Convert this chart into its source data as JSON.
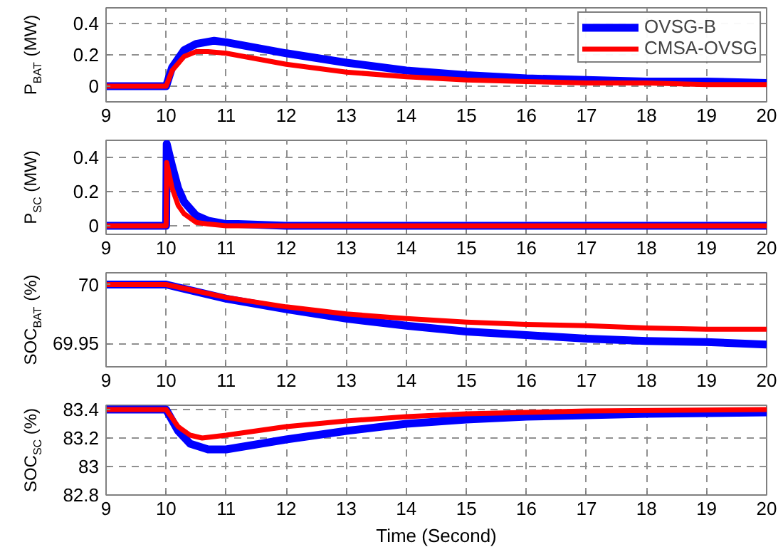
{
  "chart_data": [
    {
      "type": "line",
      "ylabel": "P$_{BAT}$ (MW)",
      "xlim": [
        9,
        20
      ],
      "xticks": [
        9,
        10,
        11,
        12,
        13,
        14,
        15,
        16,
        17,
        18,
        19,
        20
      ],
      "ylim": [
        -0.1,
        0.5
      ],
      "yticks": [
        0,
        0.2,
        0.4
      ],
      "grid": true,
      "legend": "top right",
      "line_style": "solid",
      "series": [
        {
          "name": "OVSG-B",
          "color": "#0000ff",
          "x": [
            9,
            10,
            10.1,
            10.3,
            10.5,
            10.8,
            11,
            12,
            13,
            14,
            15,
            16,
            17,
            18,
            19,
            20
          ],
          "values": [
            0,
            0,
            0.12,
            0.23,
            0.27,
            0.29,
            0.28,
            0.21,
            0.15,
            0.1,
            0.07,
            0.05,
            0.04,
            0.03,
            0.03,
            0.02
          ]
        },
        {
          "name": "CMSA-OVSG",
          "color": "#ff0000",
          "x": [
            9,
            10,
            10.1,
            10.3,
            10.5,
            10.7,
            11,
            12,
            13,
            14,
            15,
            16,
            17,
            18,
            19,
            20
          ],
          "values": [
            0,
            0,
            0.1,
            0.19,
            0.22,
            0.22,
            0.21,
            0.14,
            0.09,
            0.06,
            0.04,
            0.03,
            0.02,
            0.02,
            0.01,
            0.01
          ]
        }
      ]
    },
    {
      "type": "line",
      "ylabel": "P$_{SC}$ (MW)",
      "xlim": [
        9,
        20
      ],
      "xticks": [
        9,
        10,
        11,
        12,
        13,
        14,
        15,
        16,
        17,
        18,
        19,
        20
      ],
      "ylim": [
        -0.05,
        0.5
      ],
      "yticks": [
        0,
        0.2,
        0.4
      ],
      "grid": true,
      "line_style": "solid",
      "series": [
        {
          "color": "#0000ff",
          "x": [
            9,
            10,
            10.01,
            10.1,
            10.2,
            10.3,
            10.5,
            10.7,
            11,
            11.2,
            12,
            20
          ],
          "values": [
            0,
            0,
            0.48,
            0.35,
            0.22,
            0.14,
            0.06,
            0.03,
            0.01,
            0.01,
            0,
            0
          ]
        },
        {
          "color": "#ff0000",
          "x": [
            9,
            10,
            10.01,
            10.1,
            10.2,
            10.3,
            10.5,
            10.7,
            11,
            20
          ],
          "values": [
            0,
            0,
            0.37,
            0.22,
            0.12,
            0.07,
            0.02,
            0.01,
            0,
            0
          ]
        }
      ]
    },
    {
      "type": "line",
      "ylabel": "SOC$_{BAT}$ (%)",
      "xlim": [
        9,
        20
      ],
      "xticks": [
        9,
        10,
        11,
        12,
        13,
        14,
        15,
        16,
        17,
        18,
        19,
        20
      ],
      "ylim": [
        69.93,
        70.01
      ],
      "yticks": [
        69.95,
        70
      ],
      "grid": true,
      "line_style": "solid",
      "series": [
        {
          "color": "#0000ff",
          "x": [
            9,
            10,
            11,
            12,
            13,
            14,
            15,
            16,
            17,
            18,
            19,
            20
          ],
          "values": [
            70,
            70,
            69.988,
            69.979,
            69.971,
            69.965,
            69.96,
            69.957,
            69.954,
            69.952,
            69.951,
            69.949
          ]
        },
        {
          "color": "#ff0000",
          "x": [
            9,
            10,
            11,
            12,
            13,
            14,
            15,
            16,
            17,
            18,
            19,
            20
          ],
          "values": [
            70,
            70,
            69.989,
            69.981,
            69.975,
            69.971,
            69.968,
            69.966,
            69.965,
            69.963,
            69.962,
            69.962
          ]
        }
      ]
    },
    {
      "type": "line",
      "xlabel": "Time (Second)",
      "ylabel": "SOC$_{SC}$ (%)",
      "xlim": [
        9,
        20
      ],
      "xticks": [
        9,
        10,
        11,
        12,
        13,
        14,
        15,
        16,
        17,
        18,
        19,
        20
      ],
      "ylim": [
        82.8,
        83.43
      ],
      "yticks": [
        82.8,
        83,
        83.2,
        83.4
      ],
      "grid": true,
      "line_style": "solid",
      "series": [
        {
          "color": "#0000ff",
          "x": [
            9,
            10,
            10.2,
            10.4,
            10.7,
            11,
            12,
            13,
            14,
            15,
            16,
            17,
            18,
            20
          ],
          "values": [
            83.4,
            83.4,
            83.25,
            83.16,
            83.12,
            83.12,
            83.19,
            83.25,
            83.3,
            83.33,
            83.35,
            83.36,
            83.37,
            83.38
          ]
        },
        {
          "color": "#ff0000",
          "x": [
            9,
            10,
            10.2,
            10.4,
            10.6,
            11,
            12,
            13,
            14,
            15,
            16,
            17,
            20
          ],
          "values": [
            83.4,
            83.4,
            83.28,
            83.22,
            83.2,
            83.22,
            83.28,
            83.32,
            83.35,
            83.37,
            83.38,
            83.39,
            83.4
          ]
        }
      ]
    }
  ]
}
